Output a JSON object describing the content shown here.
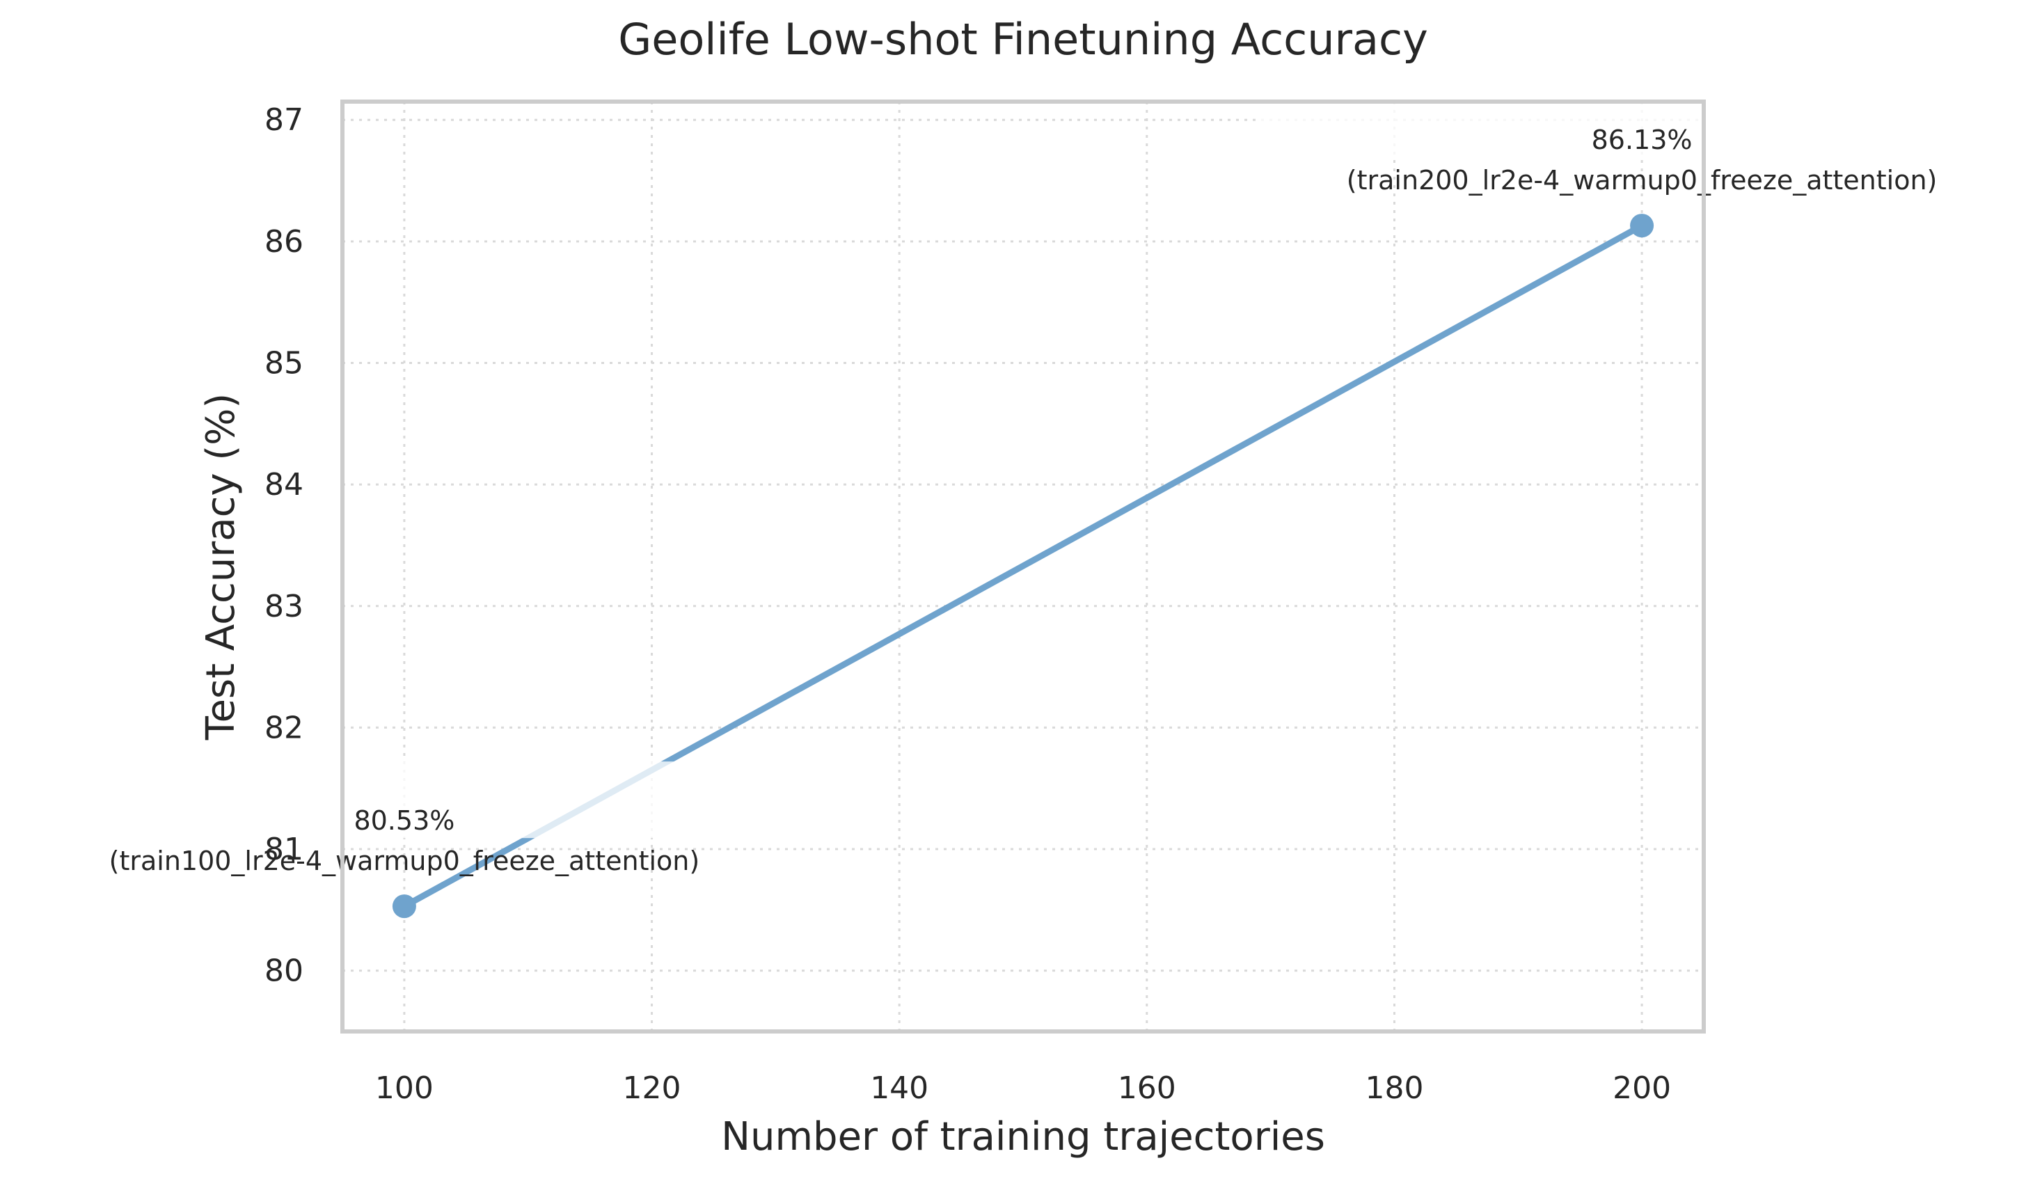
{
  "chart_data": {
    "type": "line",
    "title": "Geolife Low-shot Finetuning Accuracy",
    "xlabel": "Number of training trajectories",
    "ylabel": "Test Accuracy (%)",
    "xlim": [
      95,
      205
    ],
    "ylim": [
      79.5,
      87.15
    ],
    "xticks": [
      100,
      120,
      140,
      160,
      180,
      200
    ],
    "yticks": [
      80,
      81,
      82,
      83,
      84,
      85,
      86,
      87
    ],
    "grid": true,
    "legend": "none",
    "color": "#6fa3cd",
    "series": [
      {
        "x": [
          100,
          200
        ],
        "values": [
          80.53,
          86.13
        ],
        "annotations": [
          {
            "value_label": "80.53%",
            "config_label": "(train100_lr2e-4_warmup0_freeze_attention)"
          },
          {
            "value_label": "86.13%",
            "config_label": "(train200_lr2e-4_warmup0_freeze_attention)"
          }
        ]
      }
    ]
  }
}
